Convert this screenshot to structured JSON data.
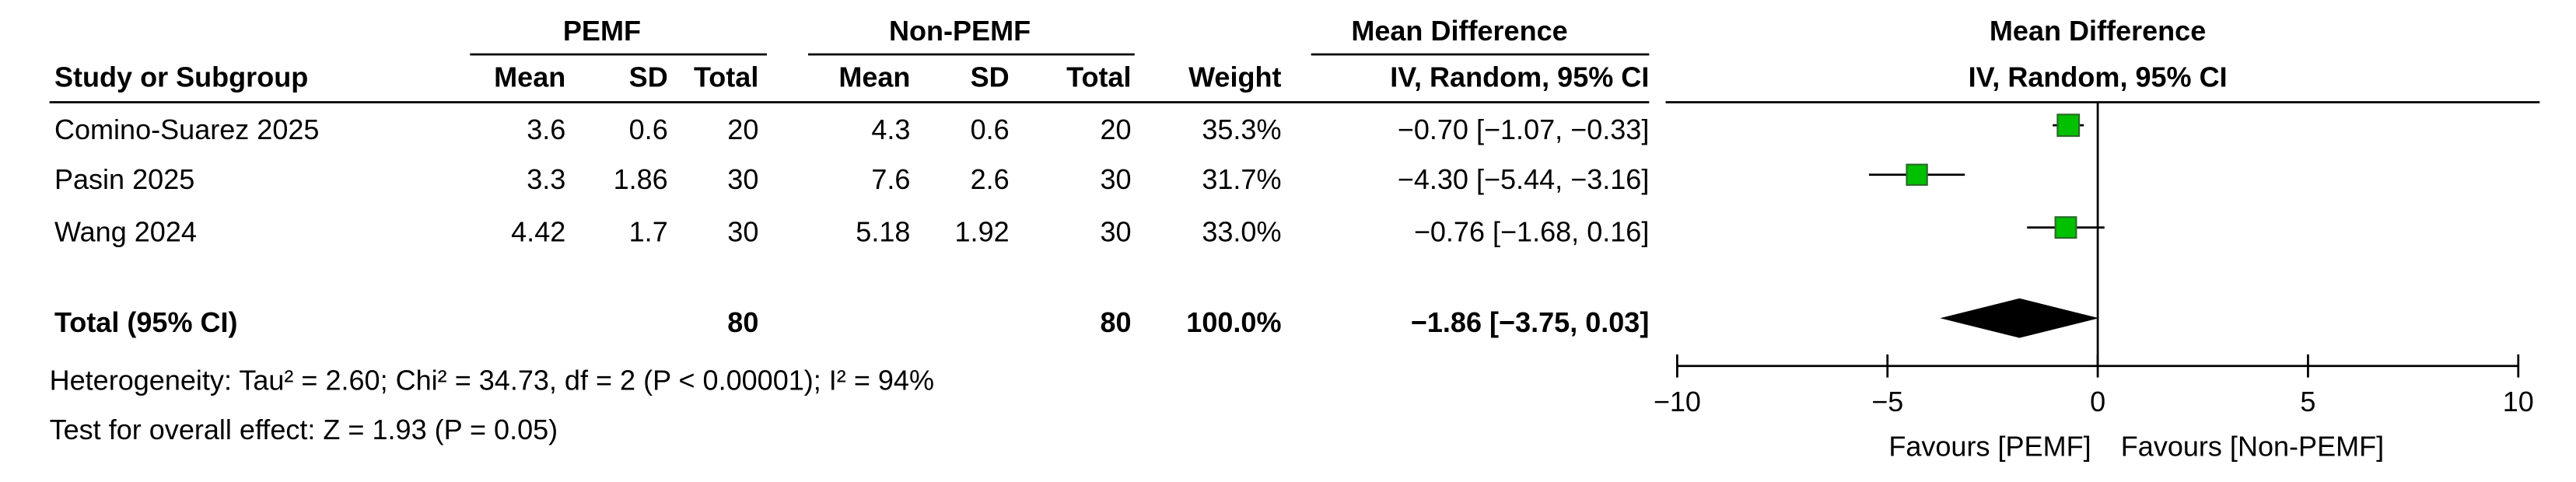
{
  "table": {
    "group_headers": [
      "PEMF",
      "Non-PEMF",
      "Mean Difference"
    ],
    "columns": [
      "Study or Subgroup",
      "Mean",
      "SD",
      "Total",
      "Mean",
      "SD",
      "Total",
      "Weight",
      "IV, Random, 95% CI"
    ],
    "rows": [
      [
        "Comino-Suarez 2025",
        "3.6",
        "0.6",
        "20",
        "4.3",
        "0.6",
        "20",
        "35.3%",
        "−0.70 [−1.07, −0.33]"
      ],
      [
        "Pasin 2025",
        "3.3",
        "1.86",
        "30",
        "7.6",
        "2.6",
        "30",
        "31.7%",
        "−4.30 [−5.44, −3.16]"
      ],
      [
        "Wang 2024",
        "4.42",
        "1.7",
        "30",
        "5.18",
        "1.92",
        "30",
        "33.0%",
        "−0.76 [−1.68, 0.16]"
      ]
    ],
    "total_row": [
      "Total (95% CI)",
      "",
      "",
      "80",
      "",
      "",
      "80",
      "100.0%",
      "−1.86 [−3.75, 0.03]"
    ],
    "heterogeneity": "Heterogeneity: Tau² = 2.60; Chi² = 34.73, df = 2 (P < 0.00001); I² = 94%",
    "overall_effect": "Test for overall effect: Z = 1.93 (P = 0.05)"
  },
  "chart_data": {
    "type": "forest",
    "title": "Mean Difference",
    "subtitle": "IV, Random, 95% CI",
    "values": [
      -0.7,
      -4.3,
      -0.76
    ],
    "lower": [
      -1.07,
      -5.44,
      -1.68
    ],
    "upper": [
      -0.33,
      -3.16,
      0.16
    ],
    "weights": [
      35.3,
      31.7,
      33.0
    ],
    "total": {
      "value": -1.86,
      "lower": -3.75,
      "upper": 0.03
    },
    "xlim": [
      -10,
      10
    ],
    "xticks": [
      {
        "value": -10,
        "label": "−10"
      },
      {
        "value": -5,
        "label": "−5"
      },
      0,
      5,
      10
    ],
    "xlabel_left": "Favours [PEMF]",
    "xlabel_right": "Favours [Non-PEMF]",
    "color": "#00c000"
  }
}
